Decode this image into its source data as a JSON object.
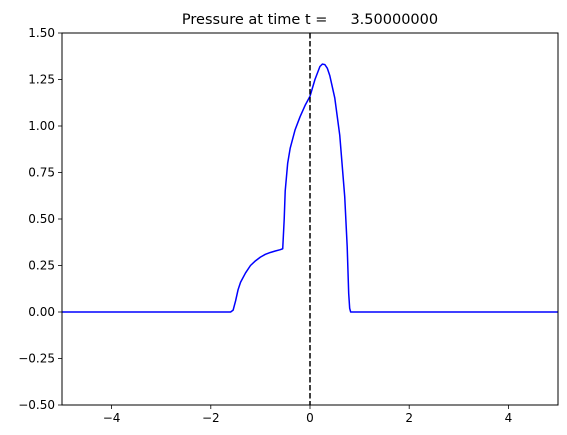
{
  "chart_data": {
    "type": "line",
    "title": "Pressure at time t =     3.50000000",
    "xlabel": "",
    "ylabel": "",
    "xlim": [
      -5,
      5
    ],
    "ylim": [
      -0.5,
      1.5
    ],
    "grid": false,
    "x_ticks": [
      -4,
      -2,
      0,
      2,
      4
    ],
    "x_tick_labels": [
      "−4",
      "−2",
      "0",
      "2",
      "4"
    ],
    "y_ticks": [
      -0.5,
      -0.25,
      0.0,
      0.25,
      0.5,
      0.75,
      1.0,
      1.25,
      1.5
    ],
    "y_tick_labels": [
      "−0.50",
      "−0.25",
      "0.00",
      "0.25",
      "0.50",
      "0.75",
      "1.00",
      "1.25",
      "1.50"
    ],
    "series": [
      {
        "color": "#0000ff",
        "x": [
          -5.0,
          -3.0,
          -1.6,
          -1.55,
          -1.5,
          -1.45,
          -1.4,
          -1.3,
          -1.2,
          -1.1,
          -1.0,
          -0.9,
          -0.8,
          -0.7,
          -0.6,
          -0.55,
          -0.52,
          -0.5,
          -0.45,
          -0.4,
          -0.3,
          -0.2,
          -0.1,
          0.0,
          0.1,
          0.2,
          0.25,
          0.3,
          0.35,
          0.4,
          0.5,
          0.6,
          0.7,
          0.75,
          0.78,
          0.8,
          0.82,
          1.0,
          3.0,
          5.0
        ],
        "values": [
          0.0,
          0.0,
          0.0,
          0.01,
          0.06,
          0.12,
          0.16,
          0.21,
          0.25,
          0.275,
          0.295,
          0.31,
          0.32,
          0.328,
          0.335,
          0.34,
          0.5,
          0.65,
          0.8,
          0.88,
          0.98,
          1.05,
          1.11,
          1.16,
          1.25,
          1.32,
          1.333,
          1.33,
          1.31,
          1.27,
          1.15,
          0.95,
          0.62,
          0.35,
          0.1,
          0.02,
          0.0,
          0.0,
          0.0,
          0.0
        ]
      }
    ],
    "vline": {
      "x": 0,
      "color": "#000000",
      "style": "dashed"
    }
  }
}
